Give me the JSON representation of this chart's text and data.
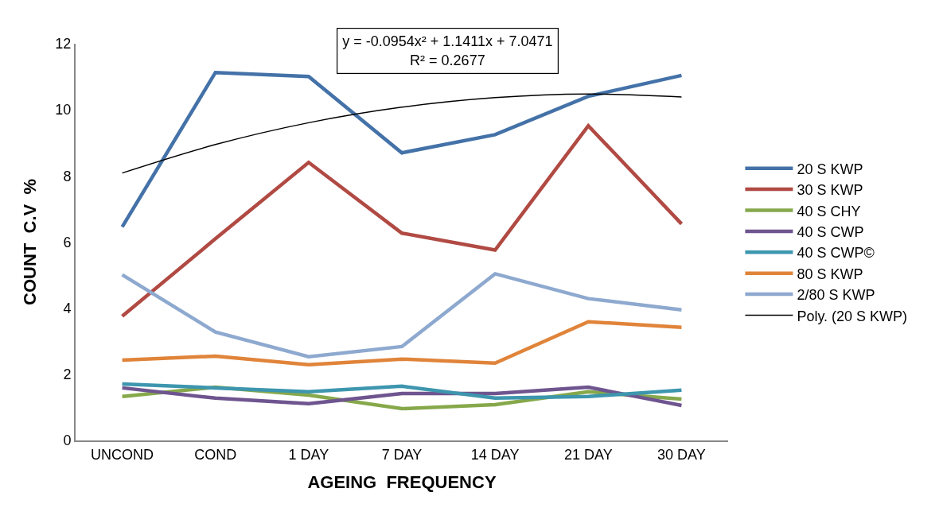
{
  "chart_data": {
    "type": "line",
    "xlabel": "AGEING  FREQUENCY",
    "ylabel": "COUNT  C.V  %",
    "categories": [
      "UNCOND",
      "COND",
      "1 DAY",
      "7 DAY",
      "14 DAY",
      "21 DAY",
      "30 DAY"
    ],
    "series": [
      {
        "name": "20 S KWP",
        "color": "#4472a8",
        "values": [
          6.46,
          11.13,
          11.01,
          8.7,
          9.25,
          10.41,
          11.04
        ]
      },
      {
        "name": "30 S KWP",
        "color": "#b04a43",
        "values": [
          3.76,
          6.1,
          8.41,
          6.27,
          5.76,
          9.52,
          6.55
        ]
      },
      {
        "name": "40 S CHY",
        "color": "#86a84b",
        "values": [
          1.33,
          1.61,
          1.37,
          0.96,
          1.08,
          1.47,
          1.25
        ]
      },
      {
        "name": "40 S CWP",
        "color": "#6e558f",
        "values": [
          1.59,
          1.28,
          1.11,
          1.42,
          1.42,
          1.61,
          1.06
        ]
      },
      {
        "name": "40 S CWP©",
        "color": "#3d96ae",
        "values": [
          1.71,
          1.59,
          1.47,
          1.64,
          1.28,
          1.33,
          1.52
        ]
      },
      {
        "name": "80 S KWP",
        "color": "#e0843a",
        "values": [
          2.43,
          2.55,
          2.29,
          2.46,
          2.34,
          3.59,
          3.42
        ]
      },
      {
        "name": "2/80 S KWP",
        "color": "#8ea9cf",
        "values": [
          5.01,
          3.28,
          2.53,
          2.84,
          5.04,
          4.29,
          3.95
        ]
      },
      {
        "name": "Poly. (20 S KWP)",
        "color": "#000000",
        "type": "line",
        "values": [
          8.09,
          8.95,
          9.61,
          10.08,
          10.37,
          10.48,
          10.39
        ]
      }
    ],
    "annotations": [
      "y = -0.0954x² + 1.1411x + 7.0471\nR² = 0.2677"
    ],
    "ylim": [
      0,
      12
    ],
    "yticks": [
      0,
      2,
      4,
      6,
      8,
      10,
      12
    ],
    "grid": false,
    "legend": "right",
    "marker": "none",
    "line_style": "solid"
  }
}
